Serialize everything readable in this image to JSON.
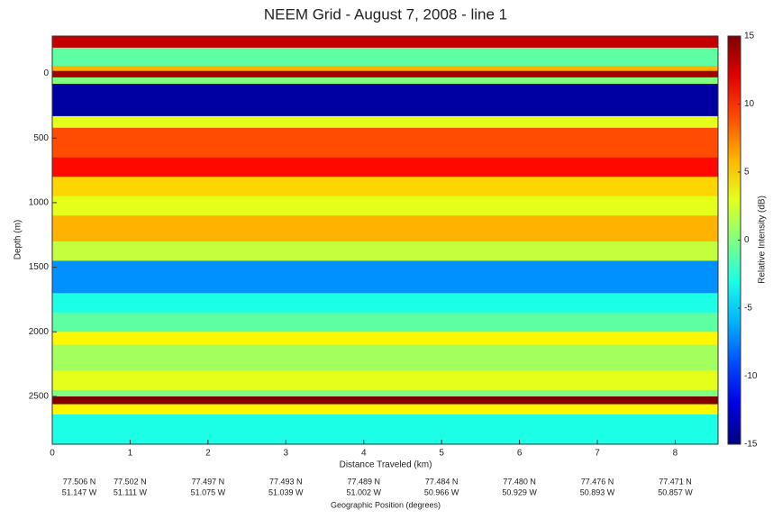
{
  "chart_data": {
    "type": "echogram",
    "title": "NEEM Grid - August 7, 2008 - line 1",
    "x_label": "Distance Traveled (km)",
    "y_label": "Depth (m)",
    "colorbar_label": "Relative Intensity (dB)",
    "geo_label": "Geographic Position (degrees)",
    "xlim": [
      0,
      8.55
    ],
    "xticks": [
      0,
      1,
      2,
      3,
      4,
      5,
      6,
      7,
      8
    ],
    "ylim": [
      -290,
      2870
    ],
    "y_reversed": true,
    "yticks": [
      0,
      500,
      1000,
      1500,
      2000,
      2500
    ],
    "clim": [
      -15,
      15
    ],
    "cticks": [
      15,
      10,
      5,
      0,
      -5,
      -10,
      -15
    ],
    "colormap": "jet",
    "bands": [
      {
        "y0": -290,
        "y1": -200,
        "value": 13
      },
      {
        "y0": -200,
        "y1": -60,
        "value": -1
      },
      {
        "y0": -60,
        "y1": -20,
        "value": 6
      },
      {
        "y0": -20,
        "y1": 30,
        "value": 14
      },
      {
        "y0": 30,
        "y1": 80,
        "value": 0
      },
      {
        "y0": 80,
        "y1": 330,
        "value": -14
      },
      {
        "y0": 330,
        "y1": 420,
        "value": 3
      },
      {
        "y0": 420,
        "y1": 650,
        "value": 9
      },
      {
        "y0": 650,
        "y1": 800,
        "value": 11
      },
      {
        "y0": 800,
        "y1": 950,
        "value": 5
      },
      {
        "y0": 950,
        "y1": 1100,
        "value": 3
      },
      {
        "y0": 1100,
        "y1": 1300,
        "value": 6
      },
      {
        "y0": 1300,
        "y1": 1450,
        "value": 2
      },
      {
        "y0": 1450,
        "y1": 1700,
        "value": -7
      },
      {
        "y0": 1700,
        "y1": 1850,
        "value": -3
      },
      {
        "y0": 1850,
        "y1": 2000,
        "value": -1
      },
      {
        "y0": 2000,
        "y1": 2100,
        "value": 4
      },
      {
        "y0": 2100,
        "y1": 2300,
        "value": 1
      },
      {
        "y0": 2300,
        "y1": 2450,
        "value": 3
      },
      {
        "y0": 2450,
        "y1": 2500,
        "value": 0
      },
      {
        "y0": 2500,
        "y1": 2560,
        "value": 15
      },
      {
        "y0": 2560,
        "y1": 2640,
        "value": 4
      },
      {
        "y0": 2640,
        "y1": 2870,
        "value": -3
      }
    ],
    "geo_positions": [
      {
        "x": 0,
        "lat": "77.506 N",
        "lon": "51.147 W"
      },
      {
        "x": 1,
        "lat": "77.502 N",
        "lon": "51.111 W"
      },
      {
        "x": 2,
        "lat": "77.497 N",
        "lon": "51.075 W"
      },
      {
        "x": 3,
        "lat": "77.493 N",
        "lon": "51.039 W"
      },
      {
        "x": 4,
        "lat": "77.489 N",
        "lon": "51.002 W"
      },
      {
        "x": 5,
        "lat": "77.484 N",
        "lon": "50.966 W"
      },
      {
        "x": 6,
        "lat": "77.480 N",
        "lon": "50.929 W"
      },
      {
        "x": 7,
        "lat": "77.476 N",
        "lon": "50.893 W"
      },
      {
        "x": 8,
        "lat": "77.471 N",
        "lon": "50.857 W"
      }
    ]
  }
}
